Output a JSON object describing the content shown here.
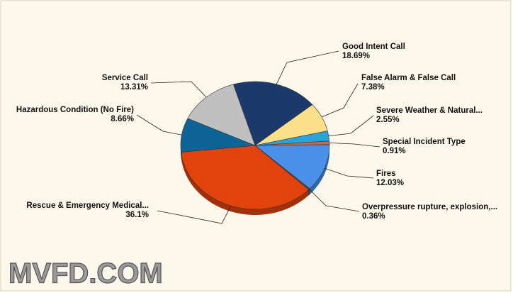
{
  "chart_data": {
    "type": "pie",
    "categories": [
      "Good Intent Call",
      "False Alarm & False Call",
      "Severe Weather & Natural...",
      "Special Incident Type",
      "Fires",
      "Overpressure rupture, explosion,...",
      "Rescue & Emergency Medical...",
      "Hazardous Condition (No Fire)",
      "Service Call"
    ],
    "values": [
      18.69,
      7.38,
      2.55,
      0.91,
      12.03,
      0.36,
      36.1,
      8.66,
      13.31
    ],
    "value_labels": [
      "18.69%",
      "7.38%",
      "2.55%",
      "0.91%",
      "12.03%",
      "0.36%",
      "36.1%",
      "8.66%",
      "13.31%"
    ],
    "colors": [
      "#1b3a6b",
      "#fde08a",
      "#29a3dd",
      "#c8694a",
      "#4a8fe8",
      "#5a4a40",
      "#e2420c",
      "#0d6496",
      "#c0c0c0"
    ]
  },
  "watermark": "MVFD.COM"
}
